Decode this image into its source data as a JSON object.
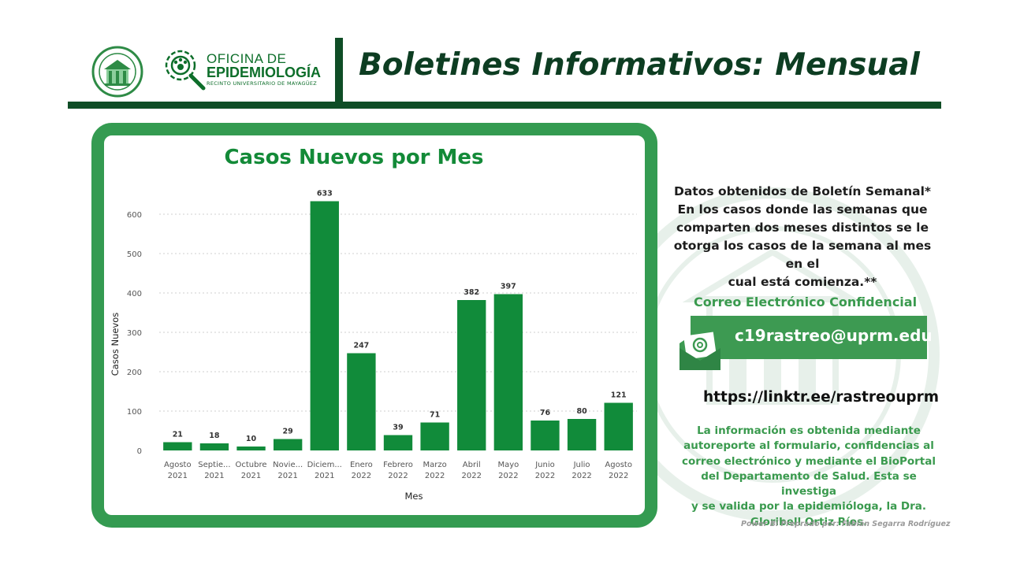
{
  "header": {
    "office_line1": "OFICINA DE",
    "office_line2": "EPIDEMIOLOGÍA",
    "office_line3": "RECINTO UNIVERSITARIO DE MAYAGÜEZ",
    "page_title": "Boletines Informativos:  Mensual"
  },
  "info": {
    "lines": [
      "Datos obtenidos de Boletín Semanal*",
      "En los casos donde las semanas que",
      "comparten dos meses distintos se le",
      "otorga los casos de la semana al mes en el",
      "cual está comienza.**"
    ],
    "email_heading": "Correo Electrónico Confidencial",
    "email": "c19rastreo@uprm.edu",
    "link": "https://linktr.ee/rastreouprm",
    "source_lines": [
      "La información es obtenida mediante",
      "autoreporte al formulario, confidencias al",
      "correo electrónico y mediante el BioPortal",
      "del Departamento de Salud. Esta se investiga",
      "y se valida por la epidemióloga, la Dra.",
      "Gloribell Ortiz Ríos."
    ],
    "credit": "Power Bi Preprado por: Fabián Segarra Rodríguez"
  },
  "colors": {
    "bar": "#118b3a",
    "title": "#138a38",
    "card_border": "#349b51",
    "header_line": "#0f4d26"
  },
  "chart_data": {
    "type": "bar",
    "title": "Casos Nuevos por Mes",
    "xlabel": "Mes",
    "ylabel": "Casos Nuevos",
    "ylim": [
      0,
      660
    ],
    "yticks": [
      0,
      100,
      200,
      300,
      400,
      500,
      600
    ],
    "grid": true,
    "categories": [
      [
        "Agosto",
        "2021"
      ],
      [
        "Septie...",
        "2021"
      ],
      [
        "Octubre",
        "2021"
      ],
      [
        "Novie...",
        "2021"
      ],
      [
        "Diciem...",
        "2021"
      ],
      [
        "Enero",
        "2022"
      ],
      [
        "Febrero",
        "2022"
      ],
      [
        "Marzo",
        "2022"
      ],
      [
        "Abril",
        "2022"
      ],
      [
        "Mayo",
        "2022"
      ],
      [
        "Junio",
        "2022"
      ],
      [
        "Julio",
        "2022"
      ],
      [
        "Agosto",
        "2022"
      ]
    ],
    "values": [
      21,
      18,
      10,
      29,
      633,
      247,
      39,
      71,
      382,
      397,
      76,
      80,
      121
    ]
  }
}
